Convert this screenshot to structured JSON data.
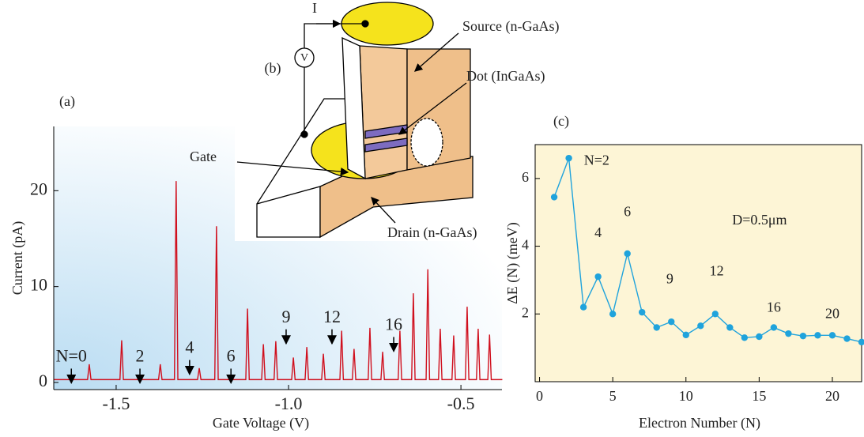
{
  "chart_data": [
    {
      "type": "line",
      "label": "(a)",
      "xlabel": "Gate Voltage (V)",
      "ylabel": "Current (pA)",
      "xlim": [
        -1.681,
        -0.381
      ],
      "ylim": [
        -0.74,
        26.7
      ],
      "xticks": [
        -1.5,
        {
          "value": -1,
          "label": "-1.0"
        },
        -0.5
      ],
      "yticks": [
        0,
        10,
        20
      ],
      "x": [
        -1.68,
        -1.583,
        -1.578,
        -1.573,
        -1.489,
        -1.484,
        -1.479,
        -1.377,
        -1.372,
        -1.367,
        -1.331,
        -1.326,
        -1.321,
        -1.264,
        -1.259,
        -1.254,
        -1.214,
        -1.209,
        -1.204,
        -1.124,
        -1.119,
        -1.114,
        -1.078,
        -1.073,
        -1.068,
        -1.042,
        -1.037,
        -1.032,
        -0.991,
        -0.986,
        -0.981,
        -0.952,
        -0.947,
        -0.942,
        -0.904,
        -0.899,
        -0.894,
        -0.851,
        -0.846,
        -0.841,
        -0.815,
        -0.81,
        -0.805,
        -0.769,
        -0.764,
        -0.759,
        -0.732,
        -0.727,
        -0.722,
        -0.682,
        -0.677,
        -0.672,
        -0.643,
        -0.638,
        -0.633,
        -0.601,
        -0.596,
        -0.591,
        -0.565,
        -0.56,
        -0.555,
        -0.526,
        -0.521,
        -0.516,
        -0.487,
        -0.482,
        -0.477,
        -0.455,
        -0.45,
        -0.445,
        -0.422,
        -0.417,
        -0.412,
        -0.38
      ],
      "series": [
        {
          "color": "#d0101e",
          "values": [
            0.3,
            0.3,
            1.9,
            0.3,
            0.3,
            4.4,
            0.3,
            0.3,
            1.9,
            0.3,
            0.3,
            21,
            0.3,
            0.3,
            1.5,
            0.3,
            0.3,
            16.3,
            0.3,
            0.3,
            7.7,
            0.3,
            0.3,
            4.0,
            0.3,
            0.3,
            4.3,
            0.3,
            0.3,
            2.6,
            0.3,
            0.3,
            3.7,
            0.3,
            0.3,
            3.0,
            0.3,
            0.3,
            5.4,
            0.3,
            0.3,
            3.5,
            0.3,
            0.3,
            5.7,
            0.3,
            0.3,
            3.2,
            0.3,
            0.3,
            5.4,
            0.3,
            0.3,
            9.3,
            0.3,
            0.3,
            11.8,
            0.3,
            0.3,
            5.6,
            0.3,
            0.3,
            4.9,
            0.3,
            0.3,
            7.9,
            0.3,
            0.3,
            5.6,
            0.3,
            0.3,
            5.0,
            0.3,
            0.3
          ]
        }
      ],
      "annotations": [
        {
          "text": "N=0",
          "x": -1.63,
          "y": 2.6
        },
        {
          "text": "2",
          "x": -1.431,
          "y": 2.6
        },
        {
          "text": "4",
          "x": -1.287,
          "y": 3.5
        },
        {
          "text": "6",
          "x": -1.167,
          "y": 2.6
        },
        {
          "text": "9",
          "x": -1.007,
          "y": 6.7
        },
        {
          "text": "12",
          "x": -0.874,
          "y": 6.7
        },
        {
          "text": "16",
          "x": -0.695,
          "y": 5.9
        }
      ]
    },
    {
      "type": "line",
      "label": "(c)",
      "xlabel": "Electron Number (N)",
      "ylabel": "ΔE (N) (meV)",
      "markers": true,
      "xlim": [
        -0.3,
        22
      ],
      "ylim": [
        0,
        7
      ],
      "xticks": [
        0,
        5,
        10,
        15,
        20
      ],
      "yticks": [
        2,
        4,
        6
      ],
      "x": [
        1,
        2,
        3,
        4,
        5,
        6,
        7,
        8,
        9,
        10,
        11,
        12,
        13,
        14,
        15,
        16,
        17,
        18,
        19,
        20,
        21,
        22
      ],
      "series": [
        {
          "color": "#1fa3dc",
          "values": [
            5.45,
            6.6,
            2.2,
            3.1,
            2.0,
            3.78,
            2.05,
            1.6,
            1.77,
            1.38,
            1.65,
            2.0,
            1.6,
            1.3,
            1.33,
            1.6,
            1.42,
            1.35,
            1.37,
            1.37,
            1.27,
            1.17
          ]
        }
      ],
      "annotations": [
        {
          "text": "N=2",
          "x": 3.9,
          "y": 6.5
        },
        {
          "text": "4",
          "x": 4,
          "y": 4.37
        },
        {
          "text": "6",
          "x": 6,
          "y": 4.98
        },
        {
          "text": "9",
          "x": 8.9,
          "y": 3.0
        },
        {
          "text": "12",
          "x": 12.1,
          "y": 3.23
        },
        {
          "text": "16",
          "x": 16,
          "y": 2.16
        },
        {
          "text": "20",
          "x": 20,
          "y": 1.98
        },
        {
          "text": "D=0.5μm",
          "x": 15.03,
          "y": 4.74
        }
      ]
    }
  ],
  "diagram": {
    "label": "(b)",
    "current": "I",
    "meter": "V",
    "source": "Source (n-GaAs)",
    "dot": "Dot (InGaAs)",
    "gate": "Gate",
    "drain": "Drain (n-GaAs)"
  }
}
